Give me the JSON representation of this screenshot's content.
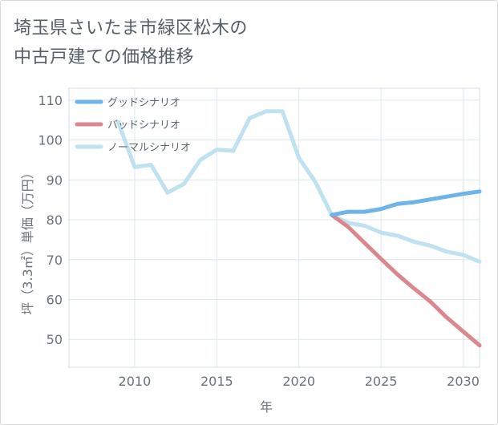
{
  "title_line1": "埼玉県さいたま市緑区松木の",
  "title_line2": "中古戸建ての価格推移",
  "chart_data": {
    "type": "line",
    "xlabel": "年",
    "ylabel": "坪（3.3㎡）単価（万円）",
    "xlim": [
      2006,
      2031
    ],
    "ylim": [
      43,
      113
    ],
    "x_ticks": [
      2010,
      2015,
      2020,
      2025,
      2030
    ],
    "y_ticks": [
      50,
      60,
      70,
      80,
      90,
      100,
      110
    ],
    "grid": true,
    "legend_position": "top-left",
    "series": [
      {
        "name": "グッドシナリオ",
        "color": "#6cb4e9",
        "x": [
          2022,
          2023,
          2024,
          2025,
          2026,
          2027,
          2028,
          2029,
          2030,
          2031
        ],
        "y": [
          81.2,
          82,
          82,
          82.7,
          84,
          84.4,
          85.1,
          85.8,
          86.5,
          87.1
        ]
      },
      {
        "name": "バッドシナリオ",
        "color": "#d98890",
        "x": [
          2022,
          2023,
          2024,
          2025,
          2026,
          2027,
          2028,
          2029,
          2030,
          2031
        ],
        "y": [
          81.2,
          78.2,
          74.2,
          70.2,
          66.3,
          62.8,
          59.5,
          55.5,
          52,
          48.5
        ]
      },
      {
        "name": "ノーマルシナリオ",
        "color": "#bfe1f0",
        "x": [
          2009,
          2010,
          2011,
          2012,
          2013,
          2014,
          2015,
          2016,
          2017,
          2018,
          2019,
          2020,
          2021,
          2022,
          2023,
          2024,
          2025,
          2026,
          2027,
          2028,
          2029,
          2030,
          2031
        ],
        "y": [
          104.5,
          93.2,
          93.8,
          86.8,
          89,
          95,
          97.6,
          97.3,
          105.5,
          107.2,
          107.2,
          95.5,
          89.5,
          81.2,
          79.2,
          78.5,
          76.8,
          76,
          74.5,
          73.5,
          72,
          71.2,
          69.5
        ]
      }
    ]
  }
}
